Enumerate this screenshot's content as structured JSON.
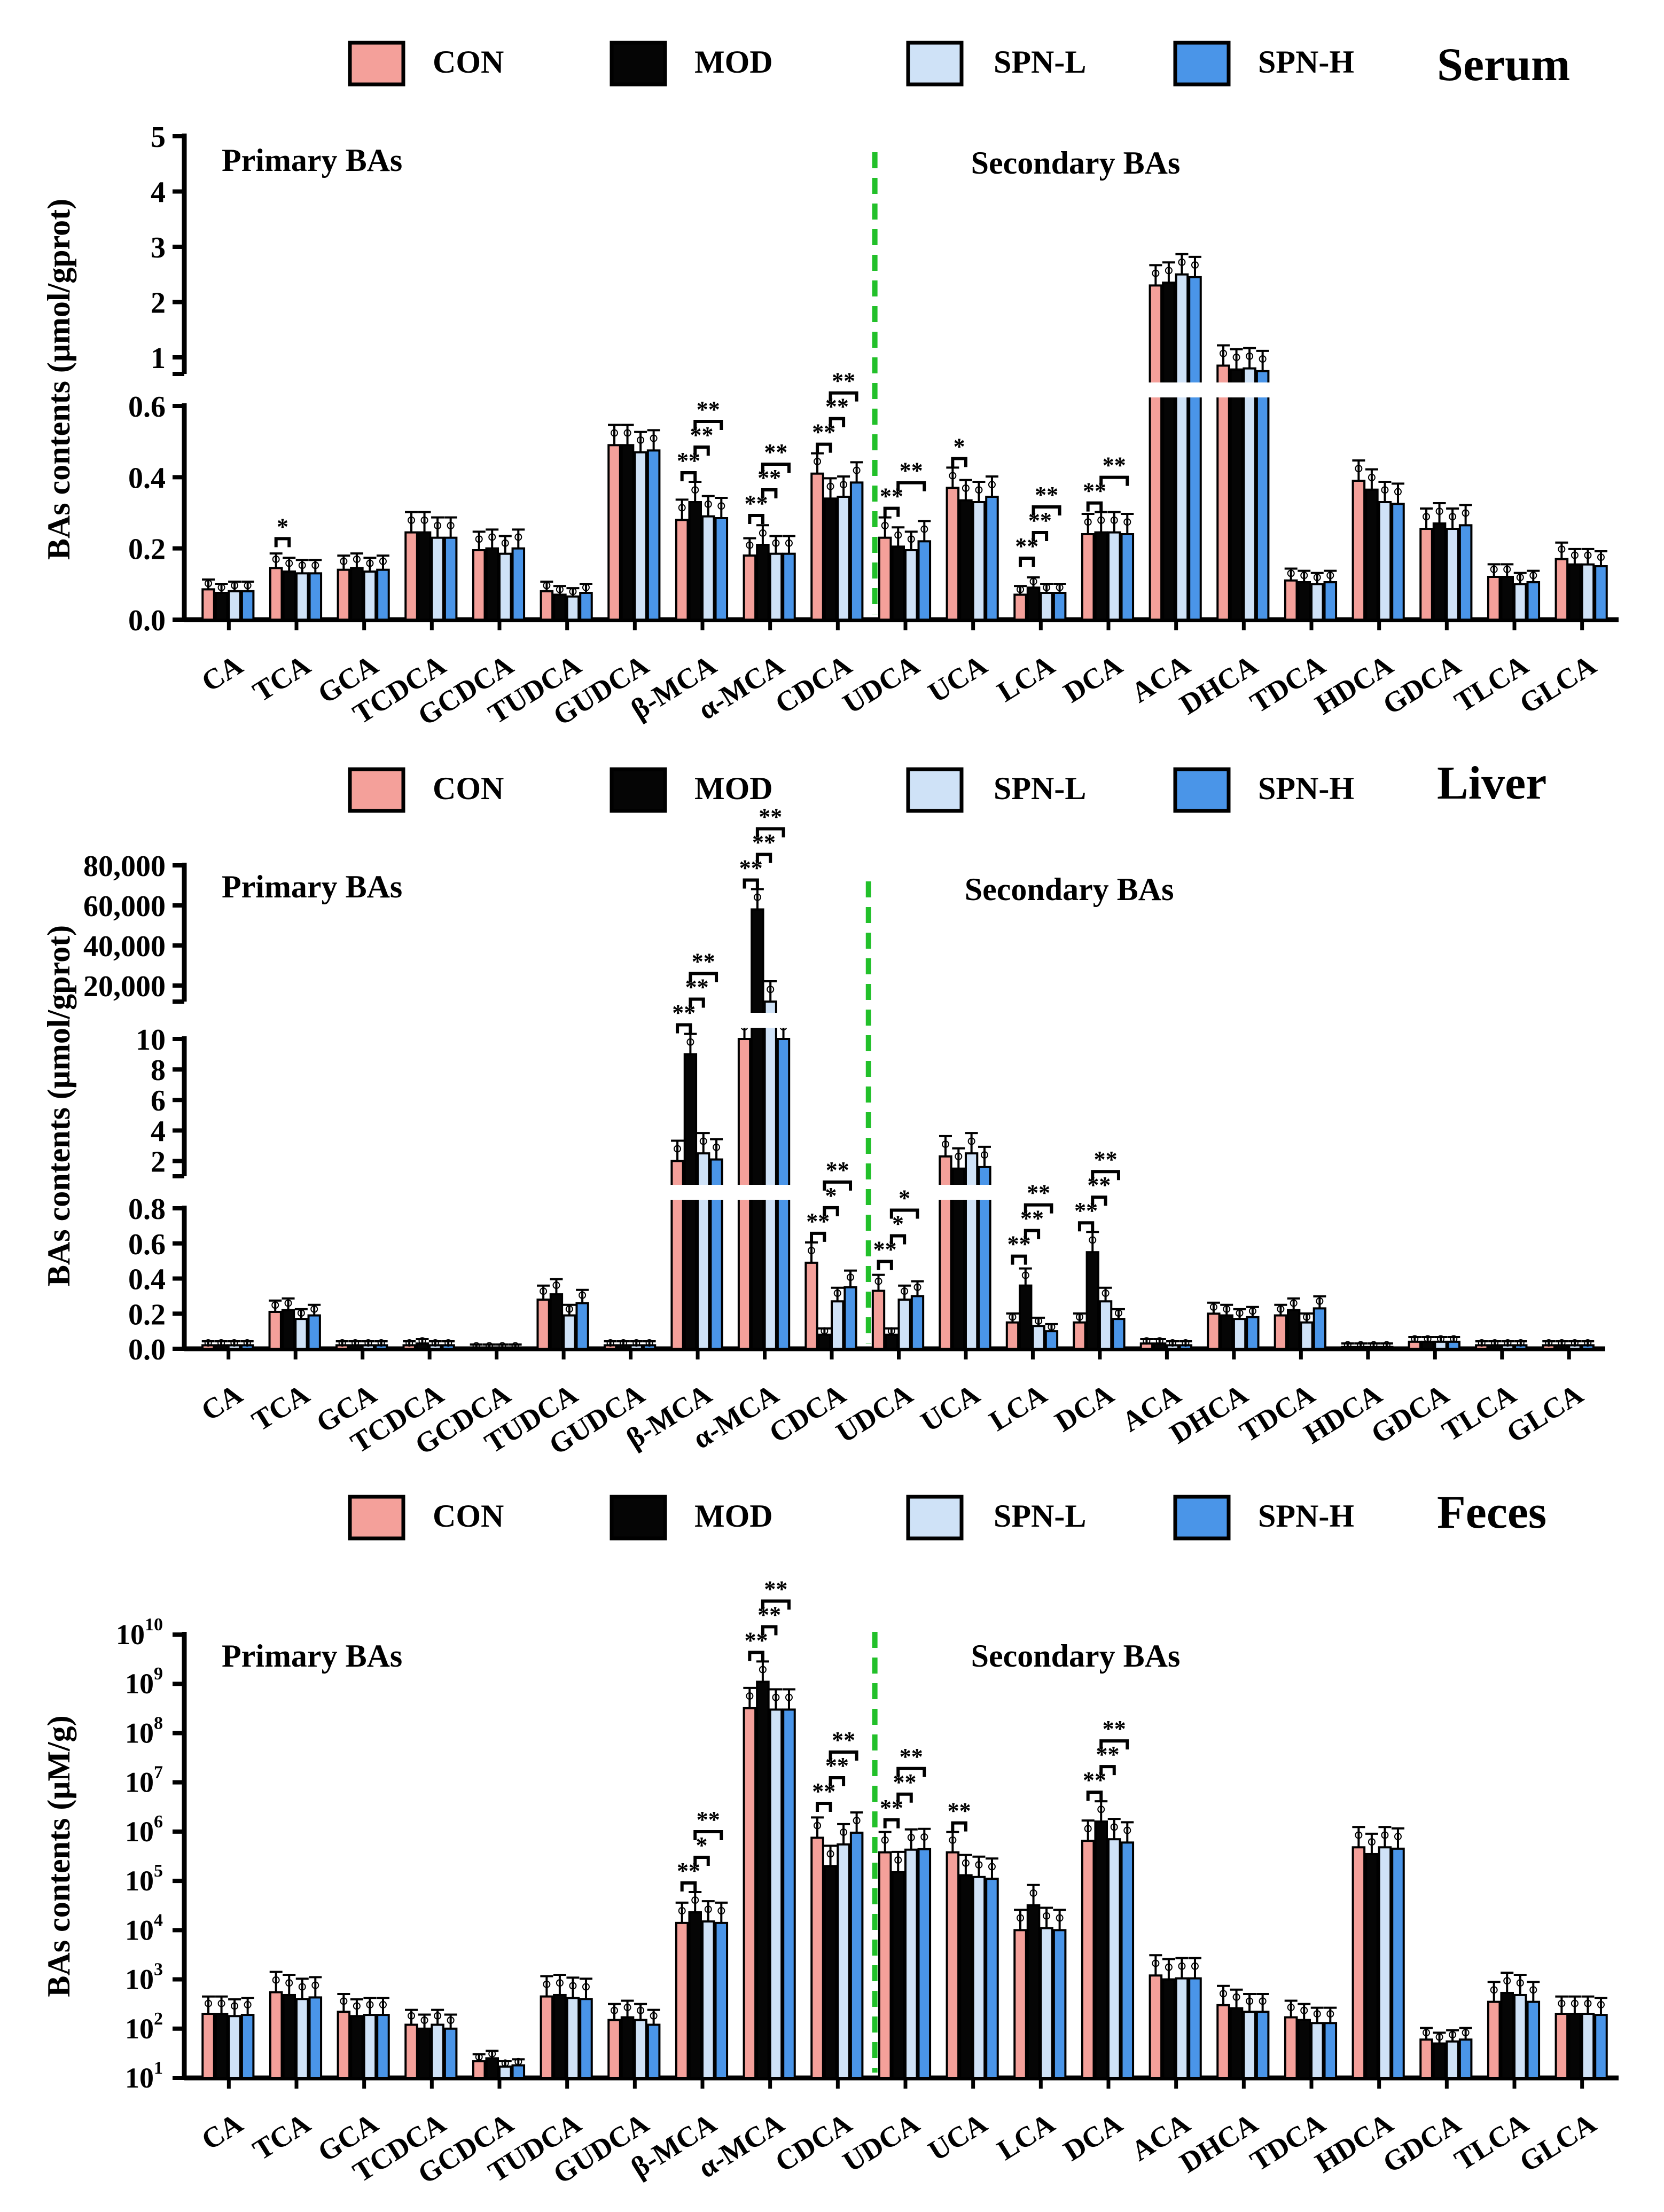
{
  "figure": {
    "groups": [
      "CON",
      "MOD",
      "SPN-L",
      "SPN-H"
    ],
    "colors": {
      "CON": "#F4A09A",
      "MOD": "#050505",
      "SPN-L": "#CFE2F7",
      "SPN-H": "#4A95E8",
      "divider": "#22C02A"
    }
  },
  "chart_data": [
    {
      "type": "bar",
      "title": "Serum",
      "ylabel": "BAs contents (μmol/gprot)",
      "scale": "broken-linear",
      "segments": [
        {
          "range": [
            0,
            0.6
          ],
          "ticks": [
            "0.0",
            "0.2",
            "0.4",
            "0.6"
          ],
          "tickValues": [
            0,
            0.2,
            0.4,
            0.6
          ]
        },
        {
          "range": [
            0.7,
            5
          ],
          "ticks": [
            "1",
            "2",
            "3",
            "4",
            "5"
          ],
          "tickValues": [
            1,
            2,
            3,
            4,
            5
          ]
        }
      ],
      "annotations": {
        "primary": "Primary BAs",
        "secondary": "Secondary BAs",
        "divider_after": "CDCA"
      },
      "categories": [
        "CA",
        "TCA",
        "GCA",
        "TCDCA",
        "GCDCA",
        "TUDCA",
        "GUDCA",
        "β-MCA",
        "α-MCA",
        "CDCA",
        "UDCA",
        "UCA",
        "LCA",
        "DCA",
        "ACA",
        "DHCA",
        "TDCA",
        "HDCA",
        "GDCA",
        "TLCA",
        "GLCA"
      ],
      "series": [
        {
          "name": "CON",
          "values": [
            0.085,
            0.145,
            0.14,
            0.245,
            0.195,
            0.08,
            0.49,
            0.28,
            0.18,
            0.41,
            0.23,
            0.37,
            0.07,
            0.24,
            2.3,
            0.85,
            0.11,
            0.39,
            0.255,
            0.12,
            0.17
          ]
        },
        {
          "name": "MOD",
          "values": [
            0.075,
            0.135,
            0.145,
            0.245,
            0.2,
            0.07,
            0.49,
            0.33,
            0.21,
            0.34,
            0.205,
            0.335,
            0.09,
            0.245,
            2.35,
            0.78,
            0.105,
            0.365,
            0.27,
            0.12,
            0.155
          ]
        },
        {
          "name": "SPN-L",
          "values": [
            0.08,
            0.13,
            0.135,
            0.23,
            0.185,
            0.065,
            0.47,
            0.29,
            0.185,
            0.345,
            0.195,
            0.33,
            0.075,
            0.245,
            2.5,
            0.8,
            0.1,
            0.33,
            0.255,
            0.1,
            0.155
          ]
        },
        {
          "name": "SPN-H",
          "values": [
            0.08,
            0.13,
            0.14,
            0.23,
            0.2,
            0.075,
            0.475,
            0.285,
            0.185,
            0.385,
            0.22,
            0.345,
            0.075,
            0.24,
            2.45,
            0.75,
            0.105,
            0.325,
            0.265,
            0.105,
            0.15
          ]
        }
      ],
      "significance": [
        {
          "category": "TCA",
          "lines": [
            [
              "CON",
              "MOD",
              "*"
            ]
          ]
        },
        {
          "category": "β-MCA",
          "lines": [
            [
              "CON",
              "MOD",
              "**"
            ],
            [
              "MOD",
              "SPN-L",
              "**"
            ],
            [
              "MOD",
              "SPN-H",
              "**"
            ]
          ]
        },
        {
          "category": "α-MCA",
          "lines": [
            [
              "CON",
              "MOD",
              "**"
            ],
            [
              "MOD",
              "SPN-L",
              "**"
            ],
            [
              "MOD",
              "SPN-H",
              "**"
            ]
          ]
        },
        {
          "category": "CDCA",
          "lines": [
            [
              "CON",
              "MOD",
              "**"
            ],
            [
              "MOD",
              "SPN-L",
              "**"
            ],
            [
              "MOD",
              "SPN-H",
              "**"
            ]
          ]
        },
        {
          "category": "UDCA",
          "lines": [
            [
              "CON",
              "MOD",
              "**"
            ],
            [
              "MOD",
              "SPN-H",
              "**"
            ]
          ]
        },
        {
          "category": "UCA",
          "lines": [
            [
              "CON",
              "MOD",
              "*"
            ]
          ]
        },
        {
          "category": "LCA",
          "lines": [
            [
              "CON",
              "MOD",
              "**"
            ],
            [
              "MOD",
              "SPN-L",
              "**"
            ],
            [
              "MOD",
              "SPN-H",
              "**"
            ]
          ]
        },
        {
          "category": "DCA",
          "lines": [
            [
              "CON",
              "MOD",
              "**"
            ],
            [
              "MOD",
              "SPN-H",
              "**"
            ]
          ]
        }
      ]
    },
    {
      "type": "bar",
      "title": "Liver",
      "ylabel": "BAs contents (μmol/gprot)",
      "scale": "broken-linear",
      "segments": [
        {
          "range": [
            0,
            0.8
          ],
          "ticks": [
            "0.0",
            "0.2",
            "0.4",
            "0.6",
            "0.8"
          ],
          "tickValues": [
            0,
            0.2,
            0.4,
            0.6,
            0.8
          ]
        },
        {
          "range": [
            1,
            10
          ],
          "ticks": [
            "2",
            "4",
            "6",
            "8",
            "10"
          ],
          "tickValues": [
            2,
            4,
            6,
            8,
            10
          ]
        },
        {
          "range": [
            12000,
            80000
          ],
          "ticks": [
            "20,000",
            "40,000",
            "60,000",
            "80,000"
          ],
          "tickValues": [
            20000,
            40000,
            60000,
            80000
          ]
        }
      ],
      "annotations": {
        "primary": "Primary BAs",
        "secondary": "Secondary BAs",
        "divider_after": "CDCA"
      },
      "categories": [
        "CA",
        "TCA",
        "GCA",
        "TCDCA",
        "GCDCA",
        "TUDCA",
        "GUDCA",
        "β-MCA",
        "α-MCA",
        "CDCA",
        "UDCA",
        "UCA",
        "LCA",
        "DCA",
        "ACA",
        "DHCA",
        "TDCA",
        "HDCA",
        "GDCA",
        "TLCA",
        "GLCA"
      ],
      "series": [
        {
          "name": "CON",
          "values": [
            0.02,
            0.21,
            0.02,
            0.02,
            0.005,
            0.28,
            0.02,
            2.0,
            10000,
            0.49,
            0.33,
            2.3,
            0.15,
            0.15,
            0.03,
            0.2,
            0.19,
            0.01,
            0.04,
            0.02,
            0.02
          ]
        },
        {
          "name": "MOD",
          "values": [
            0.02,
            0.22,
            0.02,
            0.03,
            0.005,
            0.31,
            0.02,
            9.0,
            58000,
            0.08,
            0.08,
            1.5,
            0.36,
            0.55,
            0.03,
            0.19,
            0.22,
            0.01,
            0.04,
            0.02,
            0.02
          ]
        },
        {
          "name": "SPN-L",
          "values": [
            0.02,
            0.17,
            0.02,
            0.02,
            0.005,
            0.19,
            0.02,
            2.5,
            12000,
            0.27,
            0.28,
            2.5,
            0.13,
            0.27,
            0.02,
            0.17,
            0.15,
            0.01,
            0.04,
            0.02,
            0.02
          ]
        },
        {
          "name": "SPN-H",
          "values": [
            0.02,
            0.19,
            0.02,
            0.02,
            0.005,
            0.26,
            0.02,
            2.1,
            9000,
            0.35,
            0.3,
            1.6,
            0.1,
            0.17,
            0.02,
            0.18,
            0.23,
            0.01,
            0.04,
            0.02,
            0.02
          ]
        }
      ],
      "significance": [
        {
          "category": "β-MCA",
          "lines": [
            [
              "CON",
              "MOD",
              "**"
            ],
            [
              "MOD",
              "SPN-L",
              "**"
            ],
            [
              "MOD",
              "SPN-H",
              "**"
            ]
          ]
        },
        {
          "category": "α-MCA",
          "lines": [
            [
              "CON",
              "MOD",
              "**"
            ],
            [
              "MOD",
              "SPN-L",
              "**"
            ],
            [
              "MOD",
              "SPN-H",
              "**"
            ]
          ]
        },
        {
          "category": "CDCA",
          "lines": [
            [
              "CON",
              "MOD",
              "**"
            ],
            [
              "MOD",
              "SPN-L",
              "*"
            ],
            [
              "MOD",
              "SPN-H",
              "**"
            ]
          ]
        },
        {
          "category": "UDCA",
          "lines": [
            [
              "CON",
              "MOD",
              "**"
            ],
            [
              "MOD",
              "SPN-L",
              "*"
            ],
            [
              "MOD",
              "SPN-H",
              "*"
            ]
          ]
        },
        {
          "category": "LCA",
          "lines": [
            [
              "CON",
              "MOD",
              "**"
            ],
            [
              "MOD",
              "SPN-L",
              "**"
            ],
            [
              "MOD",
              "SPN-H",
              "**"
            ]
          ]
        },
        {
          "category": "DCA",
          "lines": [
            [
              "CON",
              "MOD",
              "**"
            ],
            [
              "MOD",
              "SPN-L",
              "**"
            ],
            [
              "MOD",
              "SPN-H",
              "**"
            ]
          ]
        }
      ]
    },
    {
      "type": "bar",
      "title": "Feces",
      "ylabel": "BAs contents (μM/g)",
      "scale": "log",
      "ylim": [
        10,
        10000000000
      ],
      "log_ticks": [
        {
          "base": "10",
          "exp": "1"
        },
        {
          "base": "10",
          "exp": "2"
        },
        {
          "base": "10",
          "exp": "3"
        },
        {
          "base": "10",
          "exp": "4"
        },
        {
          "base": "10",
          "exp": "5"
        },
        {
          "base": "10",
          "exp": "6"
        },
        {
          "base": "10",
          "exp": "7"
        },
        {
          "base": "10",
          "exp": "8"
        },
        {
          "base": "10",
          "exp": "9"
        },
        {
          "base": "10",
          "exp": "10"
        }
      ],
      "annotations": {
        "primary": "Primary BAs",
        "secondary": "Secondary BAs",
        "divider_after": "CDCA"
      },
      "categories": [
        "CA",
        "TCA",
        "GCA",
        "TCDCA",
        "GCDCA",
        "TUDCA",
        "GUDCA",
        "β-MCA",
        "α-MCA",
        "CDCA",
        "UDCA",
        "UCA",
        "LCA",
        "DCA",
        "ACA",
        "DHCA",
        "TDCA",
        "HDCA",
        "GDCA",
        "TLCA",
        "GLCA"
      ],
      "series": [
        {
          "name": "CON",
          "values": [
            200,
            550,
            220,
            120,
            22,
            450,
            150,
            14000,
            320000000,
            750000,
            380000,
            380000,
            10000,
            650000,
            1200,
            300,
            170,
            480000,
            60,
            350,
            200
          ]
        },
        {
          "name": "MOD",
          "values": [
            200,
            480,
            180,
            100,
            25,
            480,
            170,
            23000,
            1100000000,
            200000,
            150000,
            130000,
            32000,
            1600000,
            1000,
            260,
            150,
            350000,
            50,
            530,
            200
          ]
        },
        {
          "name": "SPN-L",
          "values": [
            180,
            400,
            190,
            120,
            17,
            420,
            150,
            15000,
            300000000,
            550000,
            430000,
            120000,
            11000,
            700000,
            1050,
            220,
            130,
            480000,
            55,
            480,
            200
          ]
        },
        {
          "name": "SPN-H",
          "values": [
            190,
            430,
            190,
            100,
            18,
            400,
            120,
            14000,
            300000000,
            950000,
            440000,
            110000,
            10000,
            600000,
            1050,
            220,
            130,
            450000,
            60,
            350,
            190
          ]
        }
      ],
      "significance": [
        {
          "category": "β-MCA",
          "lines": [
            [
              "CON",
              "MOD",
              "**"
            ],
            [
              "MOD",
              "SPN-L",
              "*"
            ],
            [
              "MOD",
              "SPN-H",
              "**"
            ]
          ]
        },
        {
          "category": "α-MCA",
          "lines": [
            [
              "CON",
              "MOD",
              "**"
            ],
            [
              "MOD",
              "SPN-L",
              "**"
            ],
            [
              "MOD",
              "SPN-H",
              "**"
            ]
          ]
        },
        {
          "category": "CDCA",
          "lines": [
            [
              "CON",
              "MOD",
              "**"
            ],
            [
              "MOD",
              "SPN-L",
              "**"
            ],
            [
              "MOD",
              "SPN-H",
              "**"
            ]
          ]
        },
        {
          "category": "UDCA",
          "lines": [
            [
              "CON",
              "MOD",
              "**"
            ],
            [
              "MOD",
              "SPN-L",
              "**"
            ],
            [
              "MOD",
              "SPN-H",
              "**"
            ]
          ]
        },
        {
          "category": "UCA",
          "lines": [
            [
              "CON",
              "MOD",
              "**"
            ]
          ]
        },
        {
          "category": "DCA",
          "lines": [
            [
              "CON",
              "MOD",
              "**"
            ],
            [
              "MOD",
              "SPN-L",
              "**"
            ],
            [
              "MOD",
              "SPN-H",
              "**"
            ]
          ]
        }
      ]
    }
  ]
}
